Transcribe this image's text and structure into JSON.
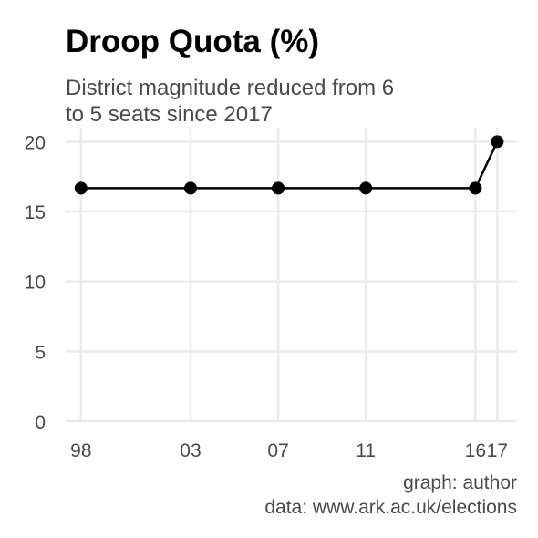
{
  "chart_data": {
    "type": "line",
    "title": "Droop Quota (%)",
    "subtitle": [
      "District magnitude reduced from 6",
      "to 5 seats since 2017"
    ],
    "xlabel": "",
    "ylabel": "",
    "x": [
      1998,
      2003,
      2007,
      2011,
      2016,
      2017
    ],
    "x_tick_labels": [
      "98",
      "03",
      "07",
      "11",
      "16",
      "17"
    ],
    "series": [
      {
        "values": [
          16.67,
          16.67,
          16.67,
          16.67,
          16.67,
          20.0
        ]
      }
    ],
    "xlim": [
      1997.3,
      2017.9
    ],
    "ylim": [
      0,
      21
    ],
    "y_ticks": [
      0,
      5,
      10,
      15,
      20
    ],
    "grid": true,
    "colors": {
      "line": "#000000",
      "grid": "#ebebeb",
      "text": "#4a4a4a"
    },
    "caption": [
      "graph: author",
      "data: www.ark.ac.uk/elections"
    ]
  }
}
